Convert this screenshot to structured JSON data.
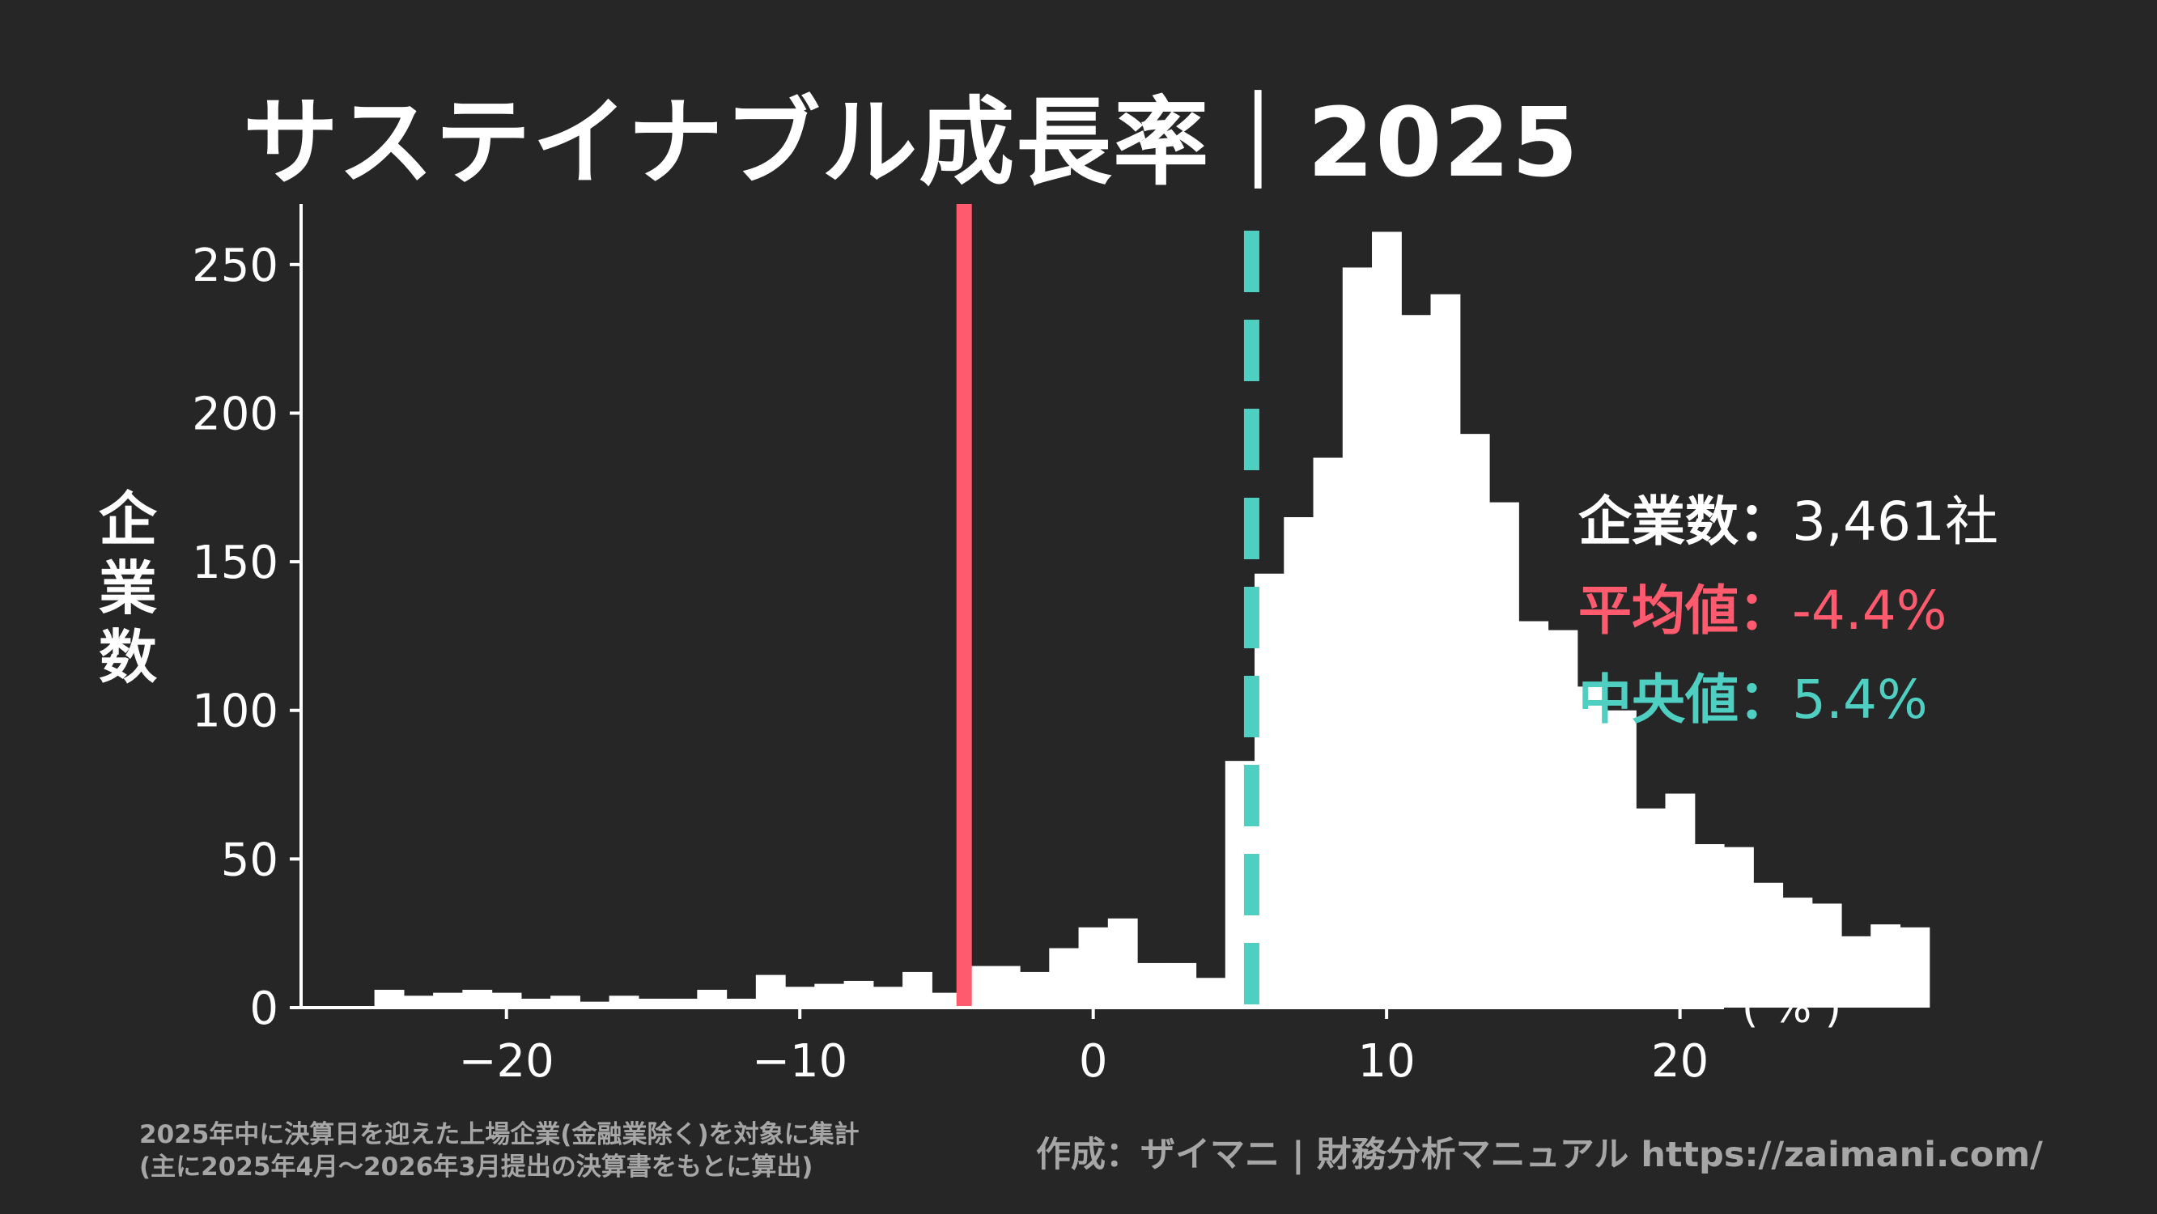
{
  "title": "サステイナブル成長率｜2025",
  "ylabel_chars": [
    "企",
    "業",
    "数"
  ],
  "stats": {
    "count_label": "企業数：",
    "count_value": "3,461社",
    "mean_label": "平均値：",
    "mean_value": "-4.4%",
    "median_label": "中央値：",
    "median_value": "5.4%"
  },
  "notes": {
    "line1": "2025年中に決算日を迎えた上場企業(金融業除く)を対象に集計",
    "line2": "(主に2025年4月〜2026年3月提出の決算書をもとに算出)"
  },
  "credit": "作成：ザイマニ | 財務分析マニュアル https://zaimani.com/",
  "colors": {
    "background": "#262626",
    "bars": "#ffffff",
    "mean": "#ff5a6e",
    "median": "#4fcfc2",
    "note": "#a6a6a6"
  },
  "chart_data": {
    "type": "bar",
    "bin_width": 1,
    "bin_start": -24.5,
    "values": [
      6,
      4,
      5,
      6,
      5,
      3,
      4,
      2,
      4,
      3,
      3,
      6,
      3,
      11,
      7,
      8,
      9,
      7,
      12,
      5,
      14,
      14,
      12,
      20,
      27,
      30,
      15,
      15,
      10,
      83,
      146,
      165,
      185,
      249,
      261,
      233,
      240,
      193,
      170,
      130,
      127,
      108,
      100,
      67,
      72,
      55,
      54,
      42,
      37,
      35,
      24,
      28,
      27
    ],
    "xlim": [
      -27,
      21.5
    ],
    "ylim": [
      0,
      275
    ],
    "xticks": [
      -20,
      -10,
      0,
      10,
      20
    ],
    "xtick_labels": [
      "−20",
      "−10",
      "0",
      "10",
      "20"
    ],
    "yticks": [
      0,
      50,
      100,
      150,
      200,
      250
    ],
    "ytick_labels": [
      "0",
      "50",
      "100",
      "150",
      "200",
      "250"
    ],
    "xunit": "( % )",
    "mean": -4.4,
    "median": 5.4
  }
}
